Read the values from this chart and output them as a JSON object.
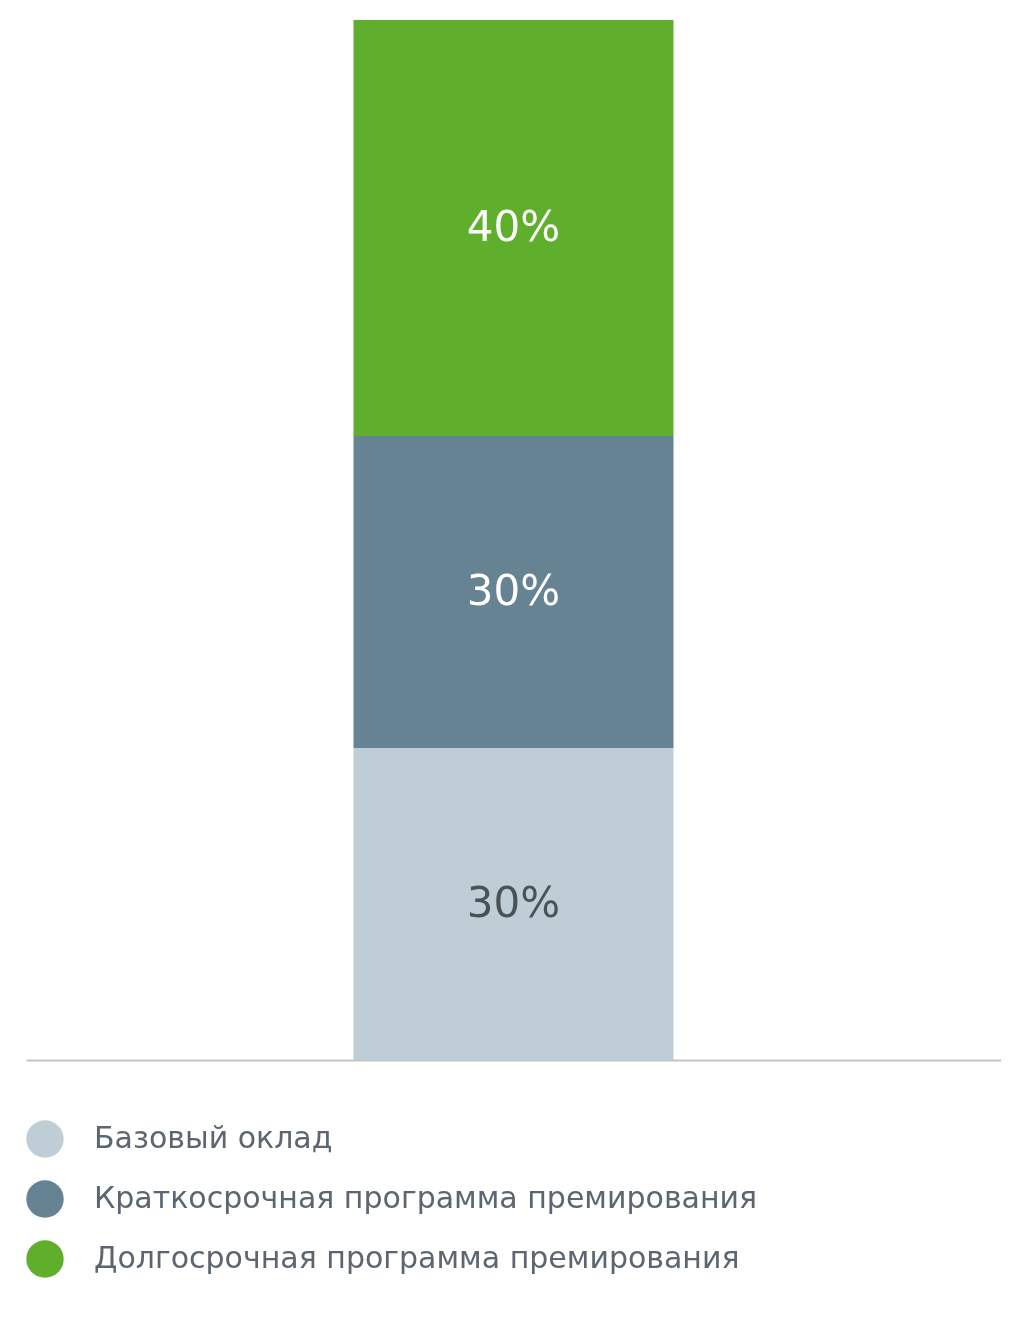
{
  "chart_data": {
    "type": "bar",
    "stacked": true,
    "categories": [
      null
    ],
    "legend": "bottom left",
    "series": [
      {
        "name": "Базовый оклад",
        "color": "#bfced6",
        "values": [
          30
        ],
        "value_labels": [
          "30%"
        ]
      },
      {
        "name": "Краткосрочная программа премирования",
        "color": "#658393",
        "values": [
          30
        ],
        "value_labels": [
          "30%"
        ]
      },
      {
        "name": "Долгосрочная программа премирования",
        "color": "#5faf2d",
        "values": [
          40
        ],
        "value_labels": [
          "40%"
        ]
      }
    ]
  }
}
